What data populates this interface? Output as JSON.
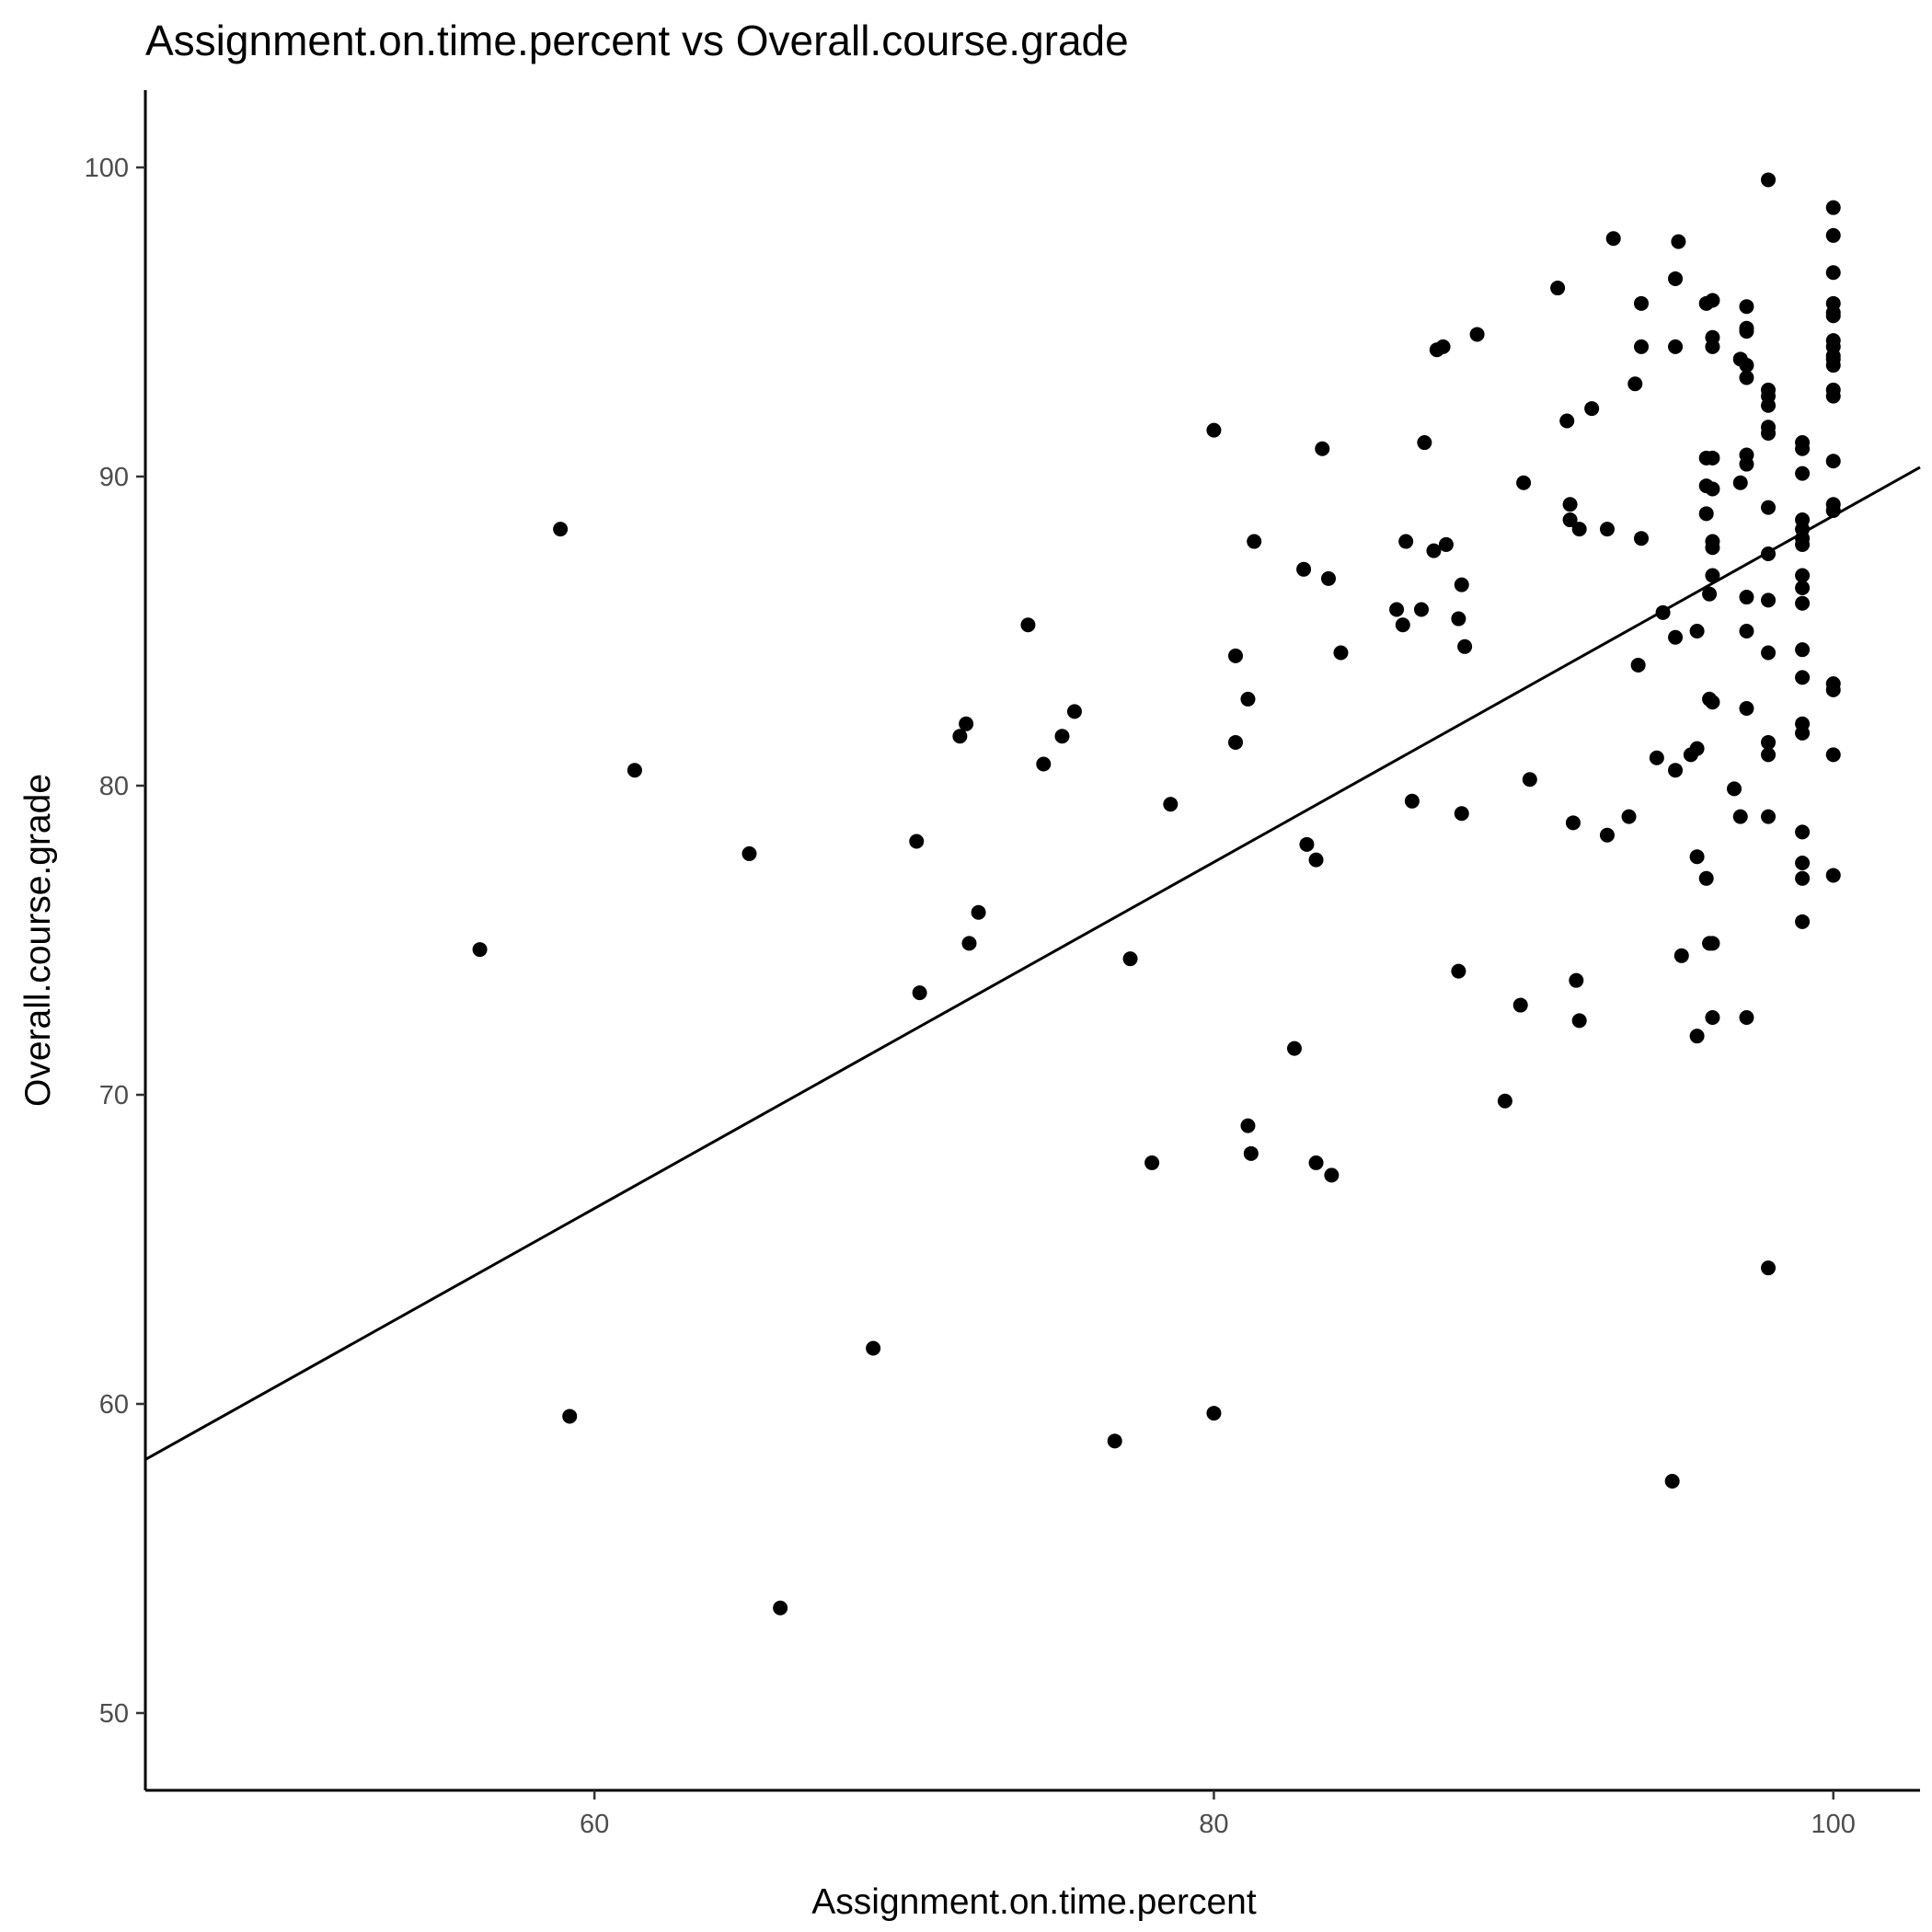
{
  "chart_data": {
    "type": "scatter",
    "title": "Assignment.on.time.percent vs Overall.course.grade",
    "xlabel": "Assignment.on.time.percent",
    "ylabel": "Overall.course.grade",
    "xlim": [
      45.5,
      102.8
    ],
    "ylim": [
      47.5,
      102.5
    ],
    "xticks": [
      60,
      80,
      100
    ],
    "yticks": [
      50,
      60,
      70,
      80,
      90,
      100
    ],
    "grid": false,
    "legend": "none",
    "trendline": {
      "type": "linear",
      "x": [
        45.5,
        102.8
      ],
      "y": [
        58.2,
        90.3
      ]
    },
    "points": [
      [
        56.3,
        74.7
      ],
      [
        58.9,
        88.3
      ],
      [
        59.2,
        59.6
      ],
      [
        61.3,
        80.5
      ],
      [
        65.0,
        77.8
      ],
      [
        66.0,
        53.4
      ],
      [
        69.0,
        61.8
      ],
      [
        70.4,
        78.2
      ],
      [
        70.5,
        73.3
      ],
      [
        71.8,
        81.6
      ],
      [
        72.0,
        82.0
      ],
      [
        72.1,
        74.9
      ],
      [
        72.4,
        75.9
      ],
      [
        74.0,
        85.2
      ],
      [
        74.5,
        80.7
      ],
      [
        75.1,
        81.6
      ],
      [
        75.5,
        82.4
      ],
      [
        76.8,
        58.8
      ],
      [
        77.3,
        74.4
      ],
      [
        78.0,
        67.8
      ],
      [
        78.6,
        79.4
      ],
      [
        80.0,
        91.5
      ],
      [
        80.0,
        59.7
      ],
      [
        80.7,
        84.2
      ],
      [
        80.7,
        81.4
      ],
      [
        81.1,
        82.8
      ],
      [
        81.1,
        69.0
      ],
      [
        81.2,
        68.1
      ],
      [
        81.3,
        87.9
      ],
      [
        82.6,
        71.5
      ],
      [
        82.9,
        87.0
      ],
      [
        83.0,
        78.1
      ],
      [
        83.3,
        77.6
      ],
      [
        83.3,
        67.8
      ],
      [
        83.5,
        90.9
      ],
      [
        83.7,
        86.7
      ],
      [
        83.8,
        67.4
      ],
      [
        84.1,
        84.3
      ],
      [
        85.9,
        85.7
      ],
      [
        86.1,
        85.2
      ],
      [
        86.2,
        87.9
      ],
      [
        86.4,
        79.5
      ],
      [
        86.7,
        85.7
      ],
      [
        86.8,
        91.1
      ],
      [
        87.1,
        87.6
      ],
      [
        87.2,
        94.1
      ],
      [
        87.4,
        94.2
      ],
      [
        87.5,
        87.8
      ],
      [
        87.9,
        85.4
      ],
      [
        88.0,
        86.5
      ],
      [
        88.0,
        79.1
      ],
      [
        88.1,
        84.5
      ],
      [
        87.9,
        74.0
      ],
      [
        88.5,
        94.6
      ],
      [
        89.4,
        69.8
      ],
      [
        89.9,
        72.9
      ],
      [
        90.0,
        89.8
      ],
      [
        90.2,
        80.2
      ],
      [
        91.1,
        96.1
      ],
      [
        91.4,
        91.8
      ],
      [
        91.5,
        89.1
      ],
      [
        91.5,
        88.6
      ],
      [
        91.6,
        78.8
      ],
      [
        91.7,
        73.7
      ],
      [
        91.8,
        72.4
      ],
      [
        91.8,
        88.3
      ],
      [
        92.2,
        92.2
      ],
      [
        92.7,
        88.3
      ],
      [
        92.7,
        78.4
      ],
      [
        92.9,
        97.7
      ],
      [
        93.4,
        79.0
      ],
      [
        93.6,
        93.0
      ],
      [
        93.7,
        83.9
      ],
      [
        93.8,
        95.6
      ],
      [
        93.8,
        94.2
      ],
      [
        93.8,
        88.0
      ],
      [
        94.3,
        80.9
      ],
      [
        94.5,
        85.6
      ],
      [
        94.9,
        84.8
      ],
      [
        94.9,
        94.2
      ],
      [
        94.9,
        96.4
      ],
      [
        95.0,
        97.6
      ],
      [
        94.9,
        80.5
      ],
      [
        95.1,
        74.5
      ],
      [
        94.8,
        57.5
      ],
      [
        95.4,
        81.0
      ],
      [
        95.6,
        85.0
      ],
      [
        95.6,
        81.2
      ],
      [
        95.6,
        77.7
      ],
      [
        95.6,
        71.9
      ],
      [
        95.9,
        95.6
      ],
      [
        95.9,
        90.6
      ],
      [
        95.9,
        89.7
      ],
      [
        95.9,
        88.8
      ],
      [
        95.9,
        77.0
      ],
      [
        96.0,
        86.2
      ],
      [
        96.0,
        82.8
      ],
      [
        96.0,
        74.9
      ],
      [
        96.1,
        95.7
      ],
      [
        96.1,
        94.5
      ],
      [
        96.1,
        94.2
      ],
      [
        96.1,
        90.6
      ],
      [
        96.1,
        89.6
      ],
      [
        96.1,
        87.9
      ],
      [
        96.1,
        87.7
      ],
      [
        96.1,
        86.8
      ],
      [
        96.1,
        82.7
      ],
      [
        96.1,
        74.9
      ],
      [
        96.1,
        72.5
      ],
      [
        96.8,
        79.9
      ],
      [
        97.0,
        93.8
      ],
      [
        97.0,
        89.8
      ],
      [
        97.0,
        79.0
      ],
      [
        97.2,
        95.5
      ],
      [
        97.2,
        94.8
      ],
      [
        97.2,
        94.7
      ],
      [
        97.2,
        93.6
      ],
      [
        97.2,
        93.2
      ],
      [
        97.2,
        90.7
      ],
      [
        97.2,
        90.4
      ],
      [
        97.2,
        86.1
      ],
      [
        97.2,
        85.0
      ],
      [
        97.2,
        82.5
      ],
      [
        97.2,
        72.5
      ],
      [
        97.9,
        99.6
      ],
      [
        97.9,
        92.8
      ],
      [
        97.9,
        92.6
      ],
      [
        97.9,
        92.3
      ],
      [
        97.9,
        91.6
      ],
      [
        97.9,
        91.4
      ],
      [
        97.9,
        89.0
      ],
      [
        97.9,
        87.5
      ],
      [
        97.9,
        86.0
      ],
      [
        97.9,
        84.3
      ],
      [
        97.9,
        81.4
      ],
      [
        97.9,
        81.0
      ],
      [
        97.9,
        79.0
      ],
      [
        97.9,
        64.4
      ],
      [
        99.0,
        91.1
      ],
      [
        99.0,
        90.9
      ],
      [
        99.0,
        90.1
      ],
      [
        99.0,
        88.6
      ],
      [
        99.0,
        88.3
      ],
      [
        99.0,
        88.0
      ],
      [
        99.0,
        87.8
      ],
      [
        99.0,
        86.8
      ],
      [
        99.0,
        86.4
      ],
      [
        99.0,
        85.9
      ],
      [
        99.0,
        84.4
      ],
      [
        99.0,
        83.5
      ],
      [
        99.0,
        82.0
      ],
      [
        99.0,
        81.7
      ],
      [
        99.0,
        78.5
      ],
      [
        99.0,
        77.5
      ],
      [
        99.0,
        77.0
      ],
      [
        99.0,
        75.6
      ],
      [
        100.0,
        98.7
      ],
      [
        100.0,
        97.8
      ],
      [
        100.0,
        96.6
      ],
      [
        100.0,
        95.6
      ],
      [
        100.0,
        95.3
      ],
      [
        100.0,
        95.2
      ],
      [
        100.0,
        94.4
      ],
      [
        100.0,
        94.2
      ],
      [
        100.0,
        93.9
      ],
      [
        100.0,
        93.8
      ],
      [
        100.0,
        93.6
      ],
      [
        100.0,
        92.8
      ],
      [
        100.0,
        92.6
      ],
      [
        100.0,
        90.5
      ],
      [
        100.0,
        89.1
      ],
      [
        100.0,
        88.9
      ],
      [
        100.0,
        83.3
      ],
      [
        100.0,
        83.1
      ],
      [
        100.0,
        81.0
      ],
      [
        100.0,
        77.1
      ]
    ]
  }
}
